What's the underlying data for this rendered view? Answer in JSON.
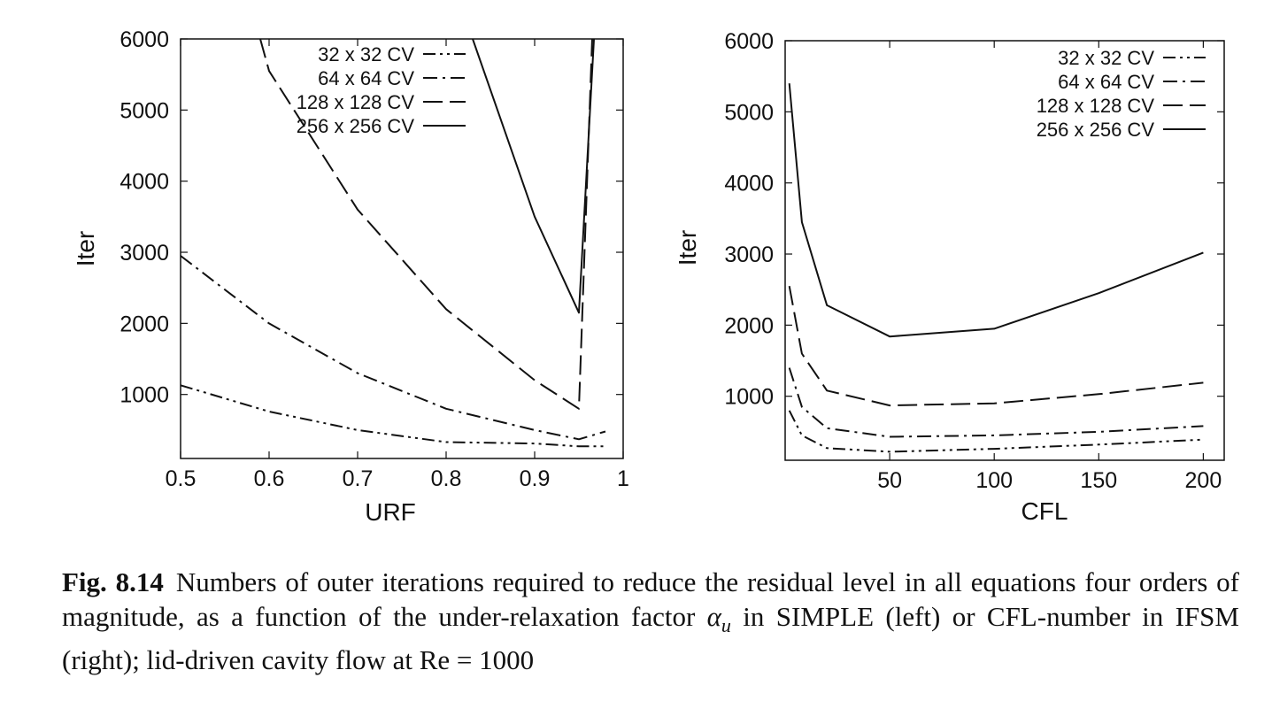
{
  "chart_data": [
    {
      "type": "line",
      "xlabel": "URF",
      "ylabel": "Iter",
      "xlim": [
        0.5,
        1.0
      ],
      "ylim": [
        100,
        6000
      ],
      "xticks": [
        "0.5",
        "0.6",
        "0.7",
        "0.8",
        "0.9",
        "1"
      ],
      "yticks": [
        "1000",
        "2000",
        "3000",
        "4000",
        "5000",
        "6000"
      ],
      "legend_position": "top-center",
      "grid": false,
      "series": [
        {
          "name": "32 x 32 CV",
          "dash": "dash-dot-dot",
          "x": [
            0.5,
            0.6,
            0.7,
            0.8,
            0.9,
            0.95,
            0.98
          ],
          "y": [
            1130,
            760,
            500,
            330,
            310,
            270,
            270
          ]
        },
        {
          "name": "64 x 64 CV",
          "dash": "dash-dot",
          "x": [
            0.5,
            0.6,
            0.7,
            0.8,
            0.9,
            0.95,
            0.98
          ],
          "y": [
            2950,
            2000,
            1300,
            800,
            500,
            370,
            480
          ]
        },
        {
          "name": "128 x 128 CV",
          "dash": "long-dash",
          "x": [
            0.59,
            0.6,
            0.7,
            0.8,
            0.9,
            0.95,
            0.965
          ],
          "y": [
            6000,
            5550,
            3600,
            2200,
            1200,
            800,
            6000
          ]
        },
        {
          "name": "256 x 256 CV",
          "dash": "solid",
          "x": [
            0.83,
            0.9,
            0.95,
            0.967
          ],
          "y": [
            6000,
            3500,
            2150,
            6000
          ]
        }
      ]
    },
    {
      "type": "line",
      "xlabel": "CFL",
      "ylabel": "Iter",
      "xlim": [
        0,
        210
      ],
      "ylim": [
        100,
        6000
      ],
      "xticks": [
        "50",
        "100",
        "150",
        "200"
      ],
      "yticks": [
        "1000",
        "2000",
        "3000",
        "4000",
        "5000",
        "6000"
      ],
      "legend_position": "top-right",
      "grid": false,
      "series": [
        {
          "name": "32 x 32 CV",
          "dash": "dash-dot-dot",
          "x": [
            2,
            8,
            20,
            50,
            100,
            150,
            200
          ],
          "y": [
            800,
            450,
            270,
            220,
            260,
            320,
            390
          ]
        },
        {
          "name": "64 x 64 CV",
          "dash": "dash-dot",
          "x": [
            2,
            8,
            20,
            50,
            100,
            150,
            200
          ],
          "y": [
            1400,
            850,
            550,
            430,
            450,
            500,
            580
          ]
        },
        {
          "name": "128 x 128 CV",
          "dash": "long-dash",
          "x": [
            2,
            8,
            20,
            50,
            100,
            150,
            200
          ],
          "y": [
            2550,
            1600,
            1080,
            870,
            900,
            1030,
            1190
          ]
        },
        {
          "name": "256 x 256 CV",
          "dash": "solid",
          "x": [
            2,
            8,
            20,
            50,
            100,
            150,
            200
          ],
          "y": [
            5400,
            3450,
            2280,
            1840,
            1950,
            2450,
            3020
          ]
        }
      ]
    }
  ],
  "caption": {
    "label": "Fig. 8.14",
    "text1": "Numbers of outer iterations required to reduce the residual level in all equations four orders of magnitude, as a function of the under-relaxation factor ",
    "symbol": "α",
    "subscript": "u",
    "text2": " in SIMPLE (left) or CFL-number in IFSM (right); lid-driven cavity flow at Re = 1000"
  }
}
